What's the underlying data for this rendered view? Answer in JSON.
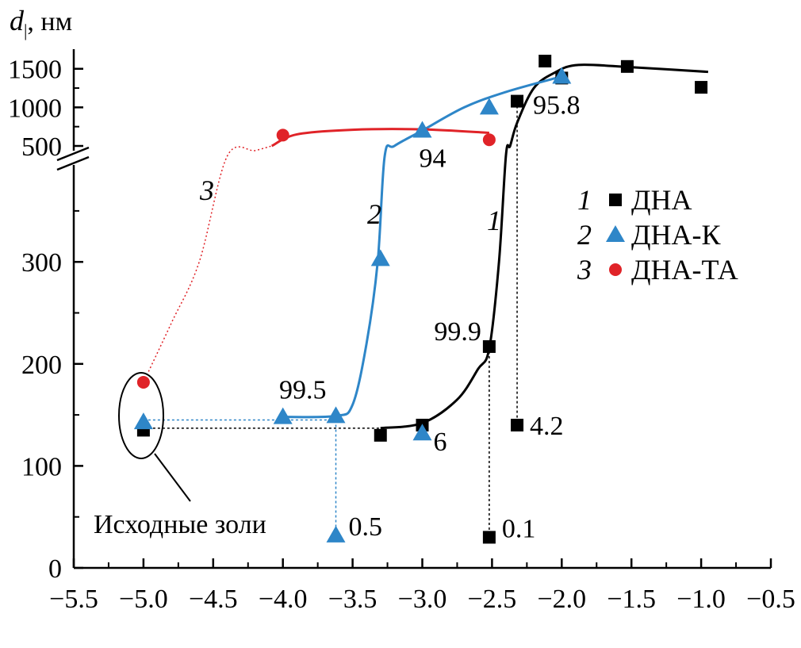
{
  "chart_data": {
    "type": "scatter",
    "ylabel": {
      "symbol": "d",
      "subscript": "|",
      "unit": ", нм"
    },
    "xlim": [
      -5.5,
      -0.5
    ],
    "x_ticks": [
      "−5.5",
      "−5.0",
      "−4.5",
      "−4.0",
      "−3.5",
      "−3.0",
      "−2.5",
      "−2.0",
      "−1.5",
      "−1.0",
      "−0.5"
    ],
    "y_ticks_lower": [
      "0",
      "100",
      "200",
      "300"
    ],
    "y_ticks_upper": [
      "500",
      "1000",
      "1500"
    ],
    "y_break": true,
    "legend_position": "right",
    "series": [
      {
        "name": "ДНА",
        "number": "1",
        "marker": "square",
        "color": "#000000",
        "points": [
          {
            "x": -5.0,
            "y": 135
          },
          {
            "x": -3.3,
            "y": 130
          },
          {
            "x": -3.0,
            "y": 140
          },
          {
            "x": -2.52,
            "y": 217
          },
          {
            "x": -2.32,
            "y": 1080
          },
          {
            "x": -2.12,
            "y": 1600
          },
          {
            "x": -2.0,
            "y": 1380
          },
          {
            "x": -1.53,
            "y": 1530
          },
          {
            "x": -1.0,
            "y": 1260
          },
          {
            "x": -2.52,
            "y": 30
          },
          {
            "x": -2.32,
            "y": 140
          }
        ],
        "curve": [
          {
            "x": -3.3,
            "y": 137
          },
          {
            "x": -3.0,
            "y": 142
          },
          {
            "x": -2.75,
            "y": 165
          },
          {
            "x": -2.6,
            "y": 195
          },
          {
            "x": -2.52,
            "y": 215
          },
          {
            "x": -2.45,
            "y": 300
          },
          {
            "x": -2.4,
            "y": 380
          },
          {
            "x": -2.37,
            "y": 500
          },
          {
            "x": -2.32,
            "y": 800
          },
          {
            "x": -2.2,
            "y": 1250
          },
          {
            "x": -2.05,
            "y": 1450
          },
          {
            "x": -1.88,
            "y": 1550
          },
          {
            "x": -1.5,
            "y": 1520
          },
          {
            "x": -0.95,
            "y": 1460
          }
        ]
      },
      {
        "name": "ДНА-К",
        "number": "2",
        "marker": "triangle",
        "color": "#2e86c8",
        "points": [
          {
            "x": -5.0,
            "y": 143
          },
          {
            "x": -4.0,
            "y": 148
          },
          {
            "x": -3.62,
            "y": 149
          },
          {
            "x": -3.3,
            "y": 303
          },
          {
            "x": -3.0,
            "y": 700
          },
          {
            "x": -2.52,
            "y": 1000
          },
          {
            "x": -2.0,
            "y": 1400
          },
          {
            "x": -3.62,
            "y": 32
          },
          {
            "x": -3.0,
            "y": 132
          }
        ],
        "curve": [
          {
            "x": -4.0,
            "y": 148
          },
          {
            "x": -3.62,
            "y": 149
          },
          {
            "x": -3.5,
            "y": 160
          },
          {
            "x": -3.4,
            "y": 220
          },
          {
            "x": -3.32,
            "y": 300
          },
          {
            "x": -3.27,
            "y": 365
          },
          {
            "x": -3.2,
            "y": 500
          },
          {
            "x": -3.0,
            "y": 700
          },
          {
            "x": -2.7,
            "y": 1000
          },
          {
            "x": -2.4,
            "y": 1200
          },
          {
            "x": -2.0,
            "y": 1400
          }
        ]
      },
      {
        "name": "ДНА-ТА",
        "number": "3",
        "marker": "circle",
        "color": "#e02328",
        "points": [
          {
            "x": -5.0,
            "y": 182
          },
          {
            "x": -4.0,
            "y": 640
          },
          {
            "x": -2.52,
            "y": 580
          }
        ],
        "curve": [
          {
            "x": -4.08,
            "y": 500
          },
          {
            "x": -3.9,
            "y": 650
          },
          {
            "x": -3.5,
            "y": 710
          },
          {
            "x": -3.0,
            "y": 715
          },
          {
            "x": -2.52,
            "y": 670
          }
        ],
        "dotted_link": [
          {
            "x": -5.0,
            "y": 182
          },
          {
            "x": -4.8,
            "y": 240
          },
          {
            "x": -4.6,
            "y": 300
          },
          {
            "x": -4.4,
            "y": 365
          },
          {
            "x": -4.2,
            "y": 440
          },
          {
            "x": -4.08,
            "y": 500
          }
        ]
      }
    ],
    "annotations": [
      {
        "text": "99.9",
        "x": -2.52,
        "y": 217
      },
      {
        "text": "95.8",
        "x": -2.32,
        "y": 1080
      },
      {
        "text": "4.2",
        "x": -2.32,
        "y": 140
      },
      {
        "text": "0.1",
        "x": -2.52,
        "y": 30
      },
      {
        "text": "99.5",
        "x": -3.62,
        "y": 149
      },
      {
        "text": "94",
        "x": -3.0,
        "y": 700
      },
      {
        "text": "6",
        "x": -3.0,
        "y": 132
      },
      {
        "text": "0.5",
        "x": -3.62,
        "y": 32
      }
    ],
    "curve_labels": [
      "1",
      "2",
      "3"
    ],
    "caption": "Исходные золи"
  }
}
